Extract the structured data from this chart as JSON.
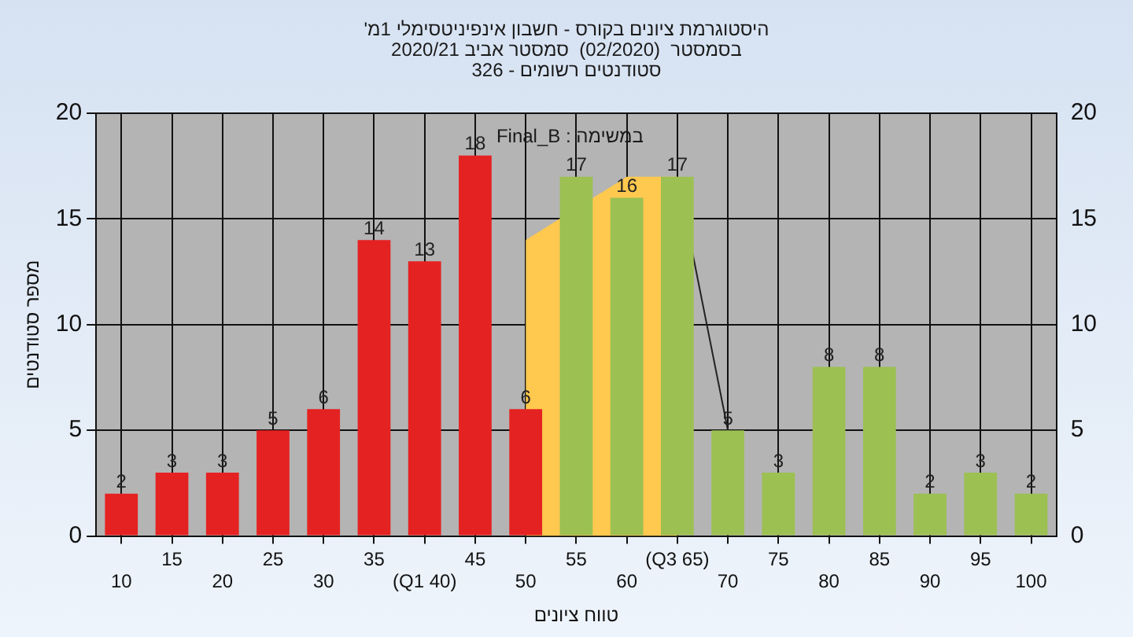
{
  "chart_data": {
    "type": "bar",
    "title": "היסטוגרמת ציונים בקורס - חשבון אינפיניטסימלי 1מ'",
    "subtitle": "בסמסטר  (02/2020)  סמסטר אביב 2020/21\nסטודנטים רשומים - 326",
    "xlabel": "טווח ציונים",
    "ylabel": "מספר סטודנטים",
    "annotations": [
      "במשימה : Final_B"
    ],
    "categories": [
      "10",
      "15",
      "20",
      "25",
      "30",
      "35",
      "(Q1 40)",
      "45",
      "50",
      "55",
      "60",
      "(Q3 65)",
      "70",
      "75",
      "80",
      "85",
      "90",
      "95",
      "100"
    ],
    "series": [
      {
        "colors": [
          "#e52222",
          "#e52222",
          "#e52222",
          "#e52222",
          "#e52222",
          "#e52222",
          "#e52222",
          "#e52222",
          "#e52222",
          "#9cc052",
          "#9cc052",
          "#9cc052",
          "#9cc052",
          "#9cc052",
          "#9cc052",
          "#9cc052",
          "#9cc052",
          "#9cc052",
          "#9cc052"
        ],
        "values": [
          2,
          3,
          3,
          5,
          6,
          14,
          13,
          18,
          6,
          17,
          16,
          17,
          5,
          3,
          8,
          8,
          2,
          3,
          2
        ],
        "value_labels": [
          "2",
          "3",
          "3",
          "5",
          "6",
          "14",
          "13",
          "18",
          "6",
          "17",
          "16",
          "17",
          "5",
          "3",
          "8",
          "8",
          "2",
          "3",
          "2"
        ]
      },
      {
        "type": "area",
        "color": "#ffc84e",
        "values": [
          null,
          null,
          null,
          null,
          null,
          null,
          null,
          null,
          14,
          null,
          17,
          17,
          null,
          null,
          null,
          null,
          null,
          null,
          null
        ]
      },
      {
        "type": "line",
        "color": "#222222",
        "values": [
          null,
          null,
          null,
          null,
          null,
          null,
          null,
          null,
          null,
          null,
          null,
          17,
          5,
          null,
          null,
          null,
          null,
          null,
          null
        ]
      }
    ],
    "ylim": [
      0,
      20
    ],
    "yticks": [
      0,
      5,
      10,
      15,
      20
    ],
    "y2lim": [
      0,
      20
    ],
    "y2ticks": [
      0,
      5,
      10,
      15,
      20
    ],
    "grid": true,
    "legend": false
  }
}
